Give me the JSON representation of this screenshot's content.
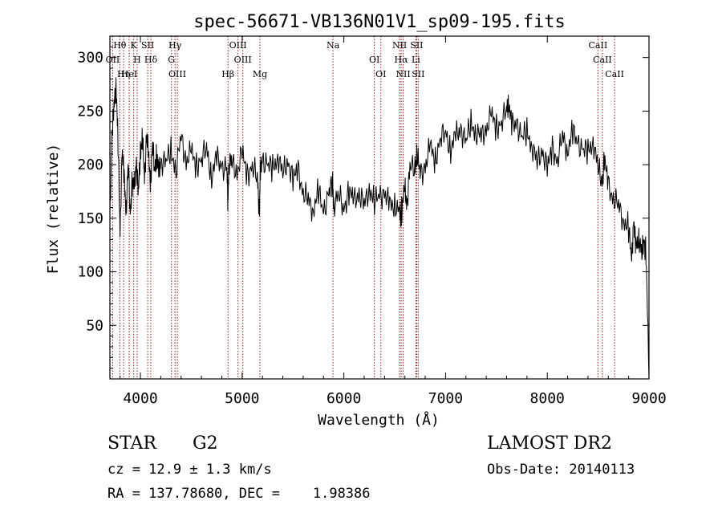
{
  "chart_data": {
    "type": "line",
    "title": "spec-56671-VB136N01V1_sp09-195.fits",
    "xlabel": "Wavelength (Å)",
    "ylabel": "Flux (relative)",
    "xlim": [
      3700,
      9000
    ],
    "ylim": [
      0,
      320
    ],
    "xticks": [
      4000,
      5000,
      6000,
      7000,
      8000,
      9000
    ],
    "yticks": [
      50,
      100,
      150,
      200,
      250,
      300
    ],
    "grid": false,
    "series": [
      {
        "name": "flux",
        "x": [
          3700,
          3720,
          3740,
          3760,
          3780,
          3800,
          3820,
          3840,
          3860,
          3880,
          3900,
          3920,
          3940,
          3960,
          3980,
          4000,
          4020,
          4040,
          4060,
          4080,
          4100,
          4120,
          4140,
          4160,
          4180,
          4200,
          4250,
          4300,
          4350,
          4400,
          4450,
          4500,
          4550,
          4600,
          4650,
          4700,
          4750,
          4800,
          4850,
          4860,
          4870,
          4900,
          4950,
          5000,
          5050,
          5100,
          5150,
          5170,
          5180,
          5200,
          5250,
          5300,
          5350,
          5400,
          5450,
          5500,
          5550,
          5600,
          5650,
          5700,
          5750,
          5800,
          5850,
          5890,
          5900,
          5950,
          6000,
          6050,
          6100,
          6150,
          6200,
          6250,
          6300,
          6350,
          6400,
          6450,
          6500,
          6550,
          6562,
          6570,
          6600,
          6620,
          6650,
          6700,
          6720,
          6750,
          6800,
          6850,
          6900,
          6950,
          7000,
          7050,
          7100,
          7150,
          7200,
          7250,
          7300,
          7350,
          7400,
          7450,
          7500,
          7550,
          7600,
          7620,
          7650,
          7700,
          7750,
          7800,
          7850,
          7900,
          7950,
          8000,
          8050,
          8100,
          8150,
          8200,
          8250,
          8300,
          8350,
          8400,
          8450,
          8500,
          8540,
          8560,
          8600,
          8650,
          8700,
          8750,
          8800,
          8830,
          8850,
          8870,
          8900,
          8930,
          8950,
          8970,
          9000
        ],
        "y": [
          150,
          230,
          250,
          280,
          220,
          135,
          215,
          185,
          160,
          200,
          155,
          185,
          175,
          205,
          170,
          215,
          225,
          185,
          230,
          205,
          185,
          220,
          195,
          210,
          190,
          205,
          200,
          215,
          195,
          225,
          205,
          210,
          200,
          205,
          215,
          190,
          205,
          200,
          195,
          165,
          205,
          200,
          195,
          210,
          190,
          200,
          185,
          160,
          195,
          205,
          200,
          195,
          210,
          190,
          205,
          185,
          195,
          175,
          165,
          160,
          175,
          155,
          175,
          180,
          165,
          170,
          160,
          175,
          165,
          175,
          160,
          180,
          165,
          170,
          175,
          160,
          165,
          155,
          150,
          160,
          175,
          165,
          195,
          200,
          210,
          190,
          200,
          215,
          205,
          225,
          230,
          215,
          225,
          235,
          220,
          240,
          230,
          225,
          235,
          245,
          235,
          240,
          250,
          260,
          235,
          240,
          225,
          230,
          220,
          200,
          215,
          195,
          215,
          205,
          225,
          215,
          230,
          220,
          215,
          210,
          225,
          195,
          185,
          205,
          180,
          170,
          160,
          150,
          140,
          110,
          150,
          120,
          135,
          115,
          130,
          120,
          0
        ]
      }
    ],
    "lines": [
      {
        "label": "Hθ",
        "wavelength": 3797
      },
      {
        "label": "OII",
        "wavelength": 3727
      },
      {
        "label": "Hη",
        "wavelength": 3835
      },
      {
        "label": "K",
        "wavelength": 3934
      },
      {
        "label": "H",
        "wavelength": 3968
      },
      {
        "label": "HeI",
        "wavelength": 3889
      },
      {
        "label": "SII",
        "wavelength": 4072
      },
      {
        "label": "Hδ",
        "wavelength": 4102
      },
      {
        "label": "OIII",
        "wavelength": 4363
      },
      {
        "label": "Hγ",
        "wavelength": 4340
      },
      {
        "label": "G",
        "wavelength": 4305
      },
      {
        "label": "Hβ",
        "wavelength": 4861
      },
      {
        "label": "OIII",
        "wavelength": 4959
      },
      {
        "label": "OIII",
        "wavelength": 5007
      },
      {
        "label": "Mg",
        "wavelength": 5175
      },
      {
        "label": "Na",
        "wavelength": 5893
      },
      {
        "label": "OI",
        "wavelength": 6300
      },
      {
        "label": "OI",
        "wavelength": 6364
      },
      {
        "label": "NII",
        "wavelength": 6548
      },
      {
        "label": "Hα",
        "wavelength": 6563
      },
      {
        "label": "NII",
        "wavelength": 6583
      },
      {
        "label": "SII",
        "wavelength": 6716
      },
      {
        "label": "Li",
        "wavelength": 6708
      },
      {
        "label": "SII",
        "wavelength": 6731
      },
      {
        "label": "CaII",
        "wavelength": 8498
      },
      {
        "label": "CaII",
        "wavelength": 8542
      },
      {
        "label": "CaII",
        "wavelength": 8662
      }
    ],
    "line_color": "#8b1a1a"
  },
  "info": {
    "class_label": "STAR",
    "subclass": "G2",
    "survey": "LAMOST DR2",
    "cz": "cz = 12.9 ± 1.3 km/s",
    "obs_date": "Obs-Date: 20140113",
    "radec": "RA = 137.78680, DEC =    1.98386"
  }
}
